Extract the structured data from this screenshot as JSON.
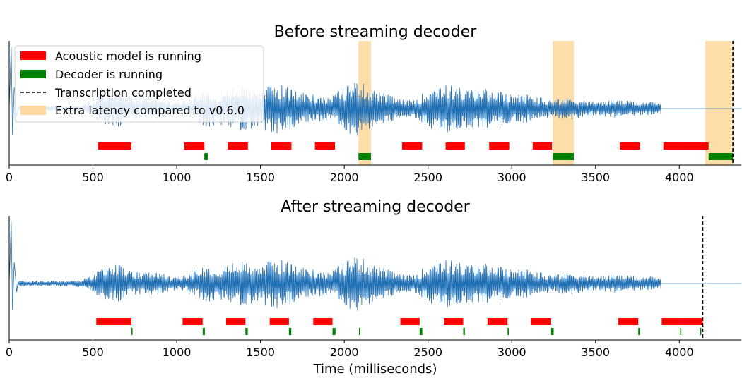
{
  "chart_data": [
    {
      "type": "timeline",
      "title": "Before streaming decoder",
      "xlabel": "",
      "xlim": [
        0,
        4370
      ],
      "xticks": [
        0,
        500,
        1000,
        1500,
        2000,
        2500,
        3000,
        3500,
        4000
      ],
      "xtick_labels": [
        "0",
        "500",
        "1000",
        "1500",
        "2000",
        "2500",
        "3000",
        "3500",
        "4000"
      ],
      "waveform_color": "#1f6fb4",
      "acoustic_color": "#ff0000",
      "decoder_color": "#008000",
      "latency_color": "#fdd9a0",
      "legend": {
        "placement": "upper-left",
        "entries": [
          {
            "key": "acoustic",
            "label": "Acoustic model is running"
          },
          {
            "key": "decoder",
            "label": "Decoder is running"
          },
          {
            "key": "completed",
            "label": "Transcription completed"
          },
          {
            "key": "latency",
            "label": "Extra latency compared to v0.6.0"
          }
        ]
      },
      "acoustic_intervals": [
        [
          530,
          730
        ],
        [
          1045,
          1165
        ],
        [
          1305,
          1425
        ],
        [
          1565,
          1685
        ],
        [
          1825,
          1945
        ],
        [
          2345,
          2465
        ],
        [
          2605,
          2720
        ],
        [
          2865,
          2985
        ],
        [
          3125,
          3240
        ],
        [
          3645,
          3765
        ],
        [
          3905,
          4020
        ],
        [
          4020,
          4175
        ]
      ],
      "decoder_intervals": [
        [
          1165,
          1185
        ],
        [
          2085,
          2160
        ],
        [
          3245,
          3370
        ],
        [
          4175,
          4320
        ]
      ],
      "latency_intervals": [
        [
          2085,
          2160
        ],
        [
          3245,
          3370
        ],
        [
          4155,
          4320
        ]
      ],
      "transcription_completed": 4320,
      "waveform_end": 3890
    },
    {
      "type": "timeline",
      "title": "After streaming decoder",
      "xlabel": "Time (milliseconds)",
      "xlim": [
        0,
        4370
      ],
      "xticks": [
        0,
        500,
        1000,
        1500,
        2000,
        2500,
        3000,
        3500,
        4000
      ],
      "xtick_labels": [
        "0",
        "500",
        "1000",
        "1500",
        "2000",
        "2500",
        "3000",
        "3500",
        "4000"
      ],
      "waveform_color": "#1f6fb4",
      "acoustic_color": "#ff0000",
      "decoder_color": "#008000",
      "acoustic_intervals": [
        [
          520,
          730
        ],
        [
          1035,
          1155
        ],
        [
          1295,
          1410
        ],
        [
          1555,
          1670
        ],
        [
          1815,
          1930
        ],
        [
          2335,
          2450
        ],
        [
          2595,
          2710
        ],
        [
          2855,
          2975
        ],
        [
          3115,
          3235
        ],
        [
          3635,
          3755
        ],
        [
          3895,
          4005
        ],
        [
          4005,
          4140
        ]
      ],
      "decoder_intervals": [
        [
          730,
          736
        ],
        [
          1155,
          1168
        ],
        [
          1410,
          1424
        ],
        [
          1670,
          1684
        ],
        [
          1930,
          1948
        ],
        [
          2088,
          2094
        ],
        [
          2450,
          2466
        ],
        [
          2710,
          2720
        ],
        [
          2975,
          2982
        ],
        [
          3235,
          3250
        ],
        [
          3755,
          3765
        ],
        [
          4005,
          4012
        ],
        [
          4125,
          4130
        ]
      ],
      "transcription_completed": 4140,
      "waveform_end": 3890
    }
  ]
}
